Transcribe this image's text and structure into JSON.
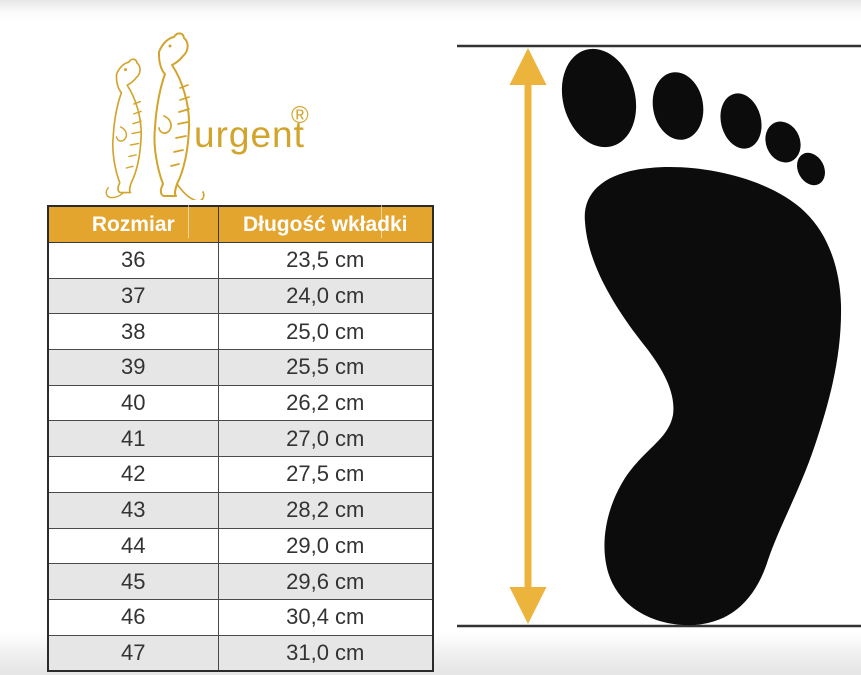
{
  "logo": {
    "brand": "urgent",
    "registered": "®"
  },
  "table": {
    "headers": [
      "Rozmiar",
      "Długość wkładki"
    ],
    "rows": [
      [
        "36",
        "23,5 cm"
      ],
      [
        "37",
        "24,0 cm"
      ],
      [
        "38",
        "25,0 cm"
      ],
      [
        "39",
        "25,5 cm"
      ],
      [
        "40",
        "26,2 cm"
      ],
      [
        "41",
        "27,0 cm"
      ],
      [
        "42",
        "27,5 cm"
      ],
      [
        "43",
        "28,2 cm"
      ],
      [
        "44",
        "29,0 cm"
      ],
      [
        "45",
        "29,6 cm"
      ],
      [
        "46",
        "30,4 cm"
      ],
      [
        "47",
        "31,0 cm"
      ]
    ]
  },
  "chart_data": {
    "type": "table",
    "columns": [
      "Rozmiar",
      "Długość wkładki"
    ],
    "categories": [
      "36",
      "37",
      "38",
      "39",
      "40",
      "41",
      "42",
      "43",
      "44",
      "45",
      "46",
      "47"
    ],
    "values_cm": [
      23.5,
      24.0,
      25.0,
      25.5,
      26.2,
      27.0,
      27.5,
      28.2,
      29.0,
      29.6,
      30.4,
      31.0
    ],
    "unit": "cm",
    "decimal_separator": ","
  },
  "diagram": {
    "icons": [
      "footprint-icon",
      "vertical-double-arrow-icon",
      "top-measure-line",
      "bottom-measure-line"
    ]
  },
  "colors": {
    "gold-logo": "#D2A42C",
    "gold-header": "#E4A52E",
    "gold-arrow": "#ECB43C",
    "row-alt": "#E6E6E6",
    "line-dark": "#333333",
    "foot-black": "#0C0C0C",
    "cell-text": "#333333"
  }
}
